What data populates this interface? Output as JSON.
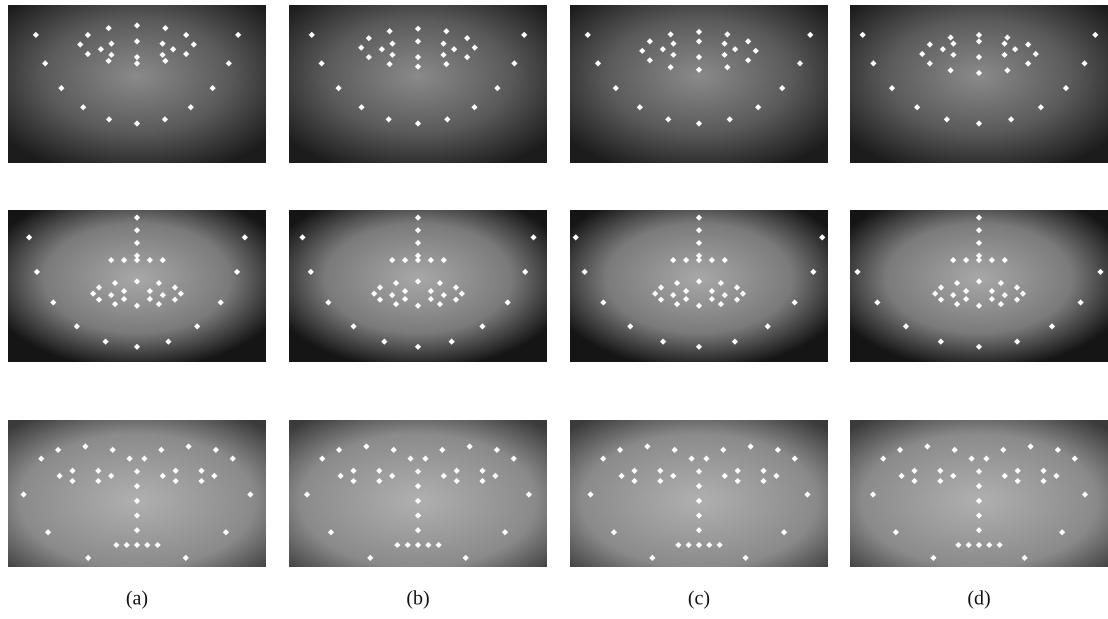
{
  "captions": [
    "(a)",
    "(b)",
    "(c)",
    "(d)"
  ]
}
